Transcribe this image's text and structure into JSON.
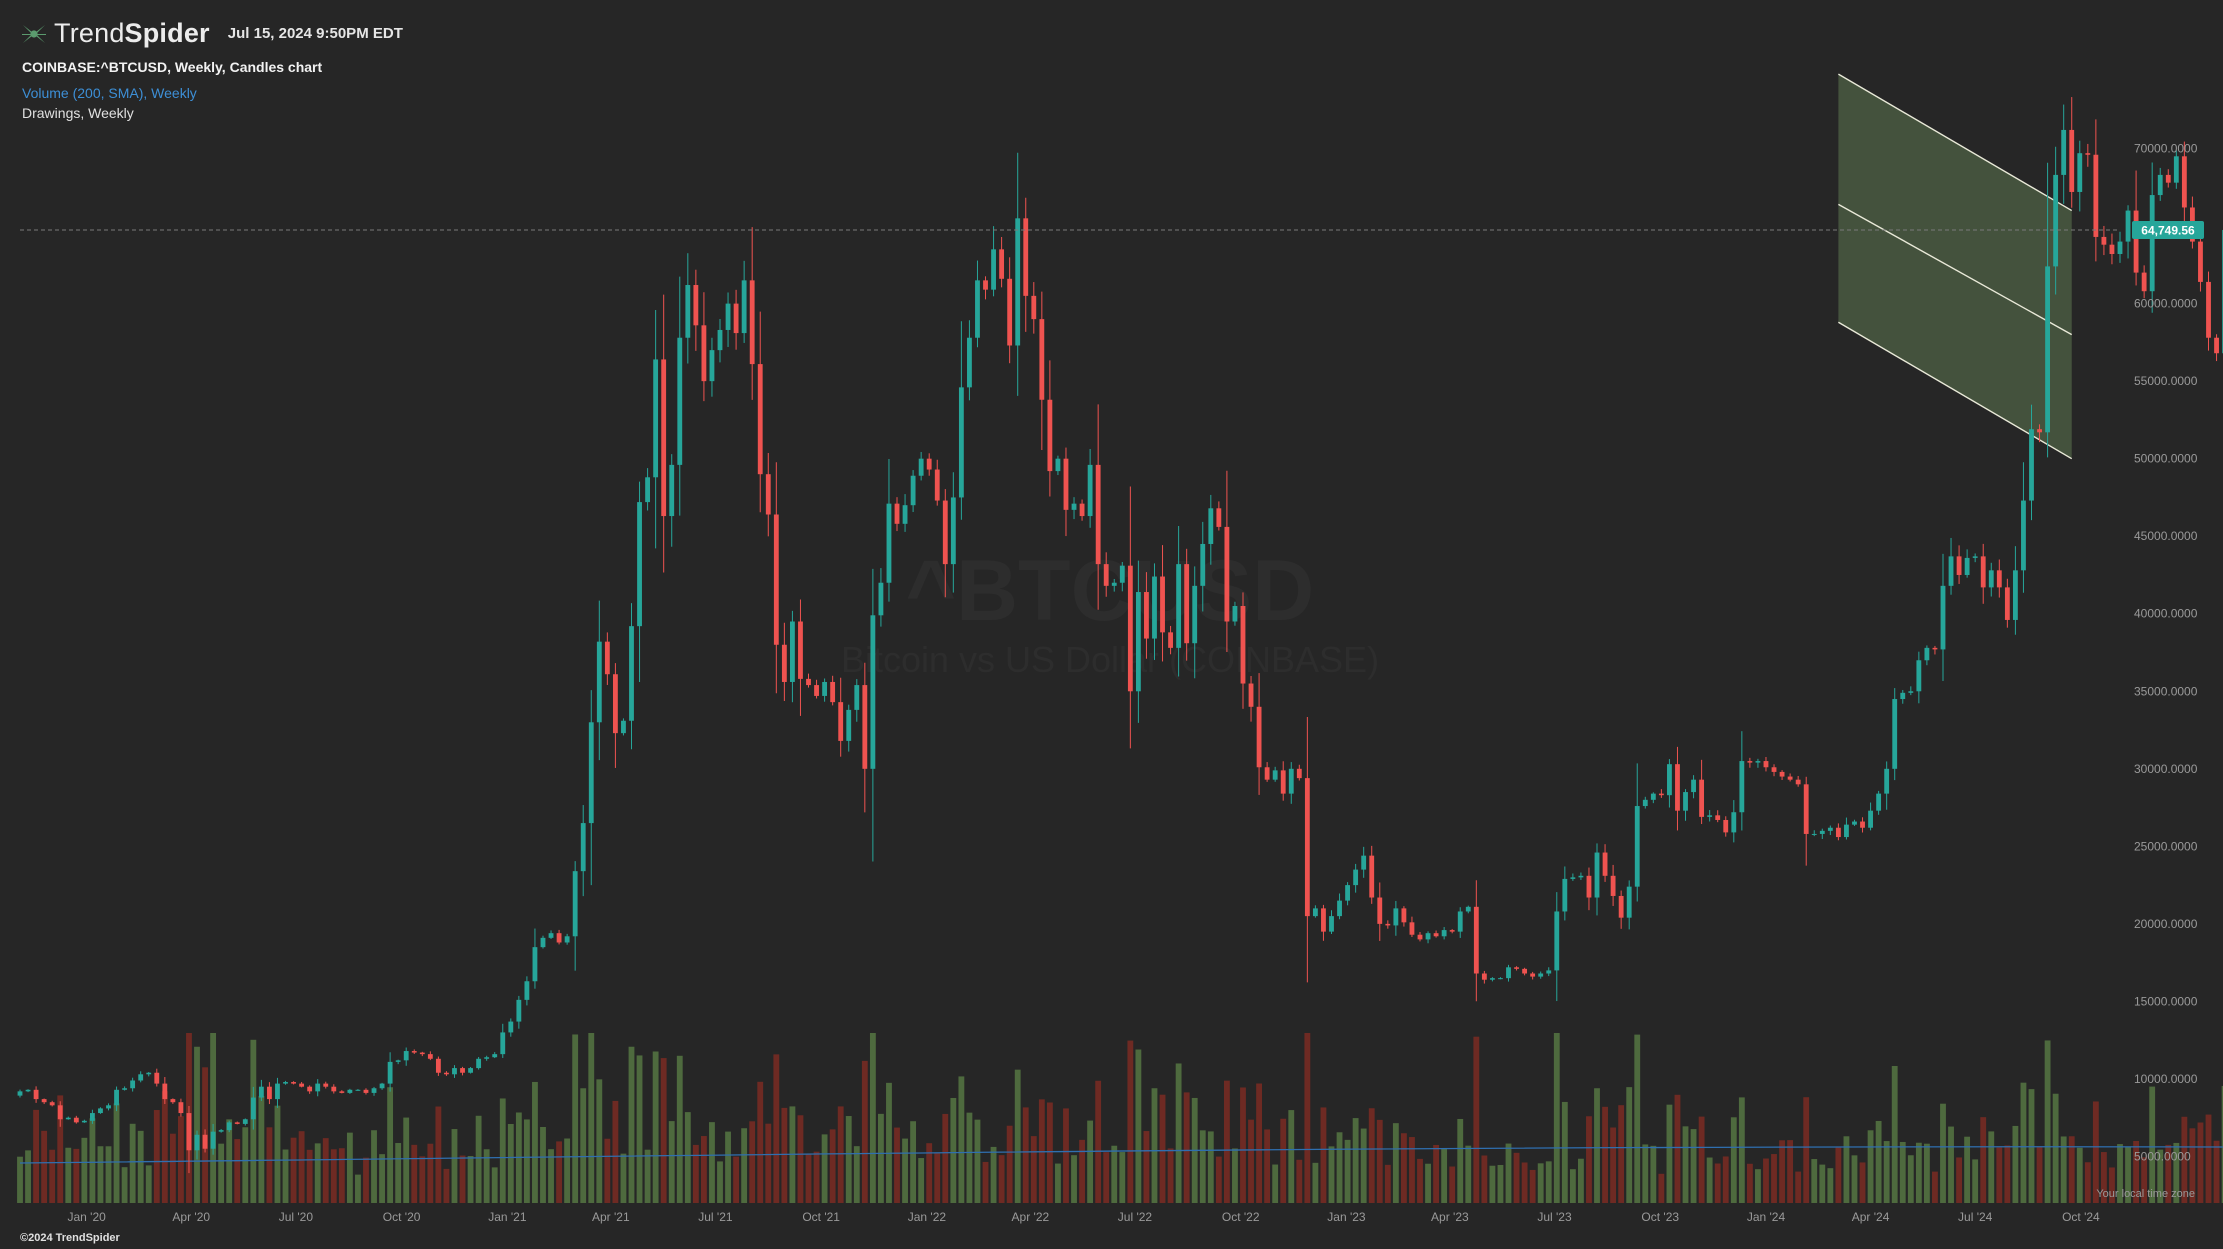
{
  "header": {
    "brand_light": "Trend",
    "brand_bold": "Spider",
    "datetime": "Jul 15, 2024 9:50PM EDT"
  },
  "info": {
    "symbol_line": "COINBASE:^BTCUSD, Weekly, Candles chart",
    "volume_line": "Volume (200, SMA), Weekly",
    "drawings_line": "Drawings, Weekly"
  },
  "watermark": {
    "ticker": "^BTCUSD",
    "name": "Bitcoin vs US Dollar (COINBASE)"
  },
  "footer": {
    "copyright": "©2024 TrendSpider",
    "timezone_label": "Your local time zone"
  },
  "colors": {
    "background": "#262626",
    "up": "#26a69a",
    "down": "#ef5350",
    "volume_up": "#4e6a3e",
    "volume_down": "#6e2a23",
    "volume_sma": "#2f6fb0",
    "channel_fill": "#6a8a5a",
    "price_badge": "#26a69a"
  },
  "chart_data": {
    "type": "candlestick",
    "title": "COINBASE:^BTCUSD, Weekly, Candles chart",
    "y_axis": {
      "ticks": [
        5000,
        10000,
        15000,
        20000,
        25000,
        30000,
        35000,
        40000,
        45000,
        50000,
        55000,
        60000,
        65000,
        70000
      ],
      "tick_labels": [
        "5000.0000",
        "10000.0000",
        "15000.0000",
        "20000.0000",
        "25000.0000",
        "30000.0000",
        "35000.0000",
        "40000.0000",
        "45000.0000",
        "50000.0000",
        "55000.0000",
        "60000.0000",
        "65000.0000",
        "70000.0000"
      ],
      "range": [
        2000,
        77000
      ],
      "position": "right"
    },
    "x_axis": {
      "range": [
        "2019-11-04",
        "2024-11-04"
      ],
      "labels": [
        {
          "label": "Jan '20",
          "date": "2020-01-01"
        },
        {
          "label": "Apr '20",
          "date": "2020-04-01"
        },
        {
          "label": "Jul '20",
          "date": "2020-07-01"
        },
        {
          "label": "Oct '20",
          "date": "2020-10-01"
        },
        {
          "label": "Jan '21",
          "date": "2021-01-01"
        },
        {
          "label": "Apr '21",
          "date": "2021-04-01"
        },
        {
          "label": "Jul '21",
          "date": "2021-07-01"
        },
        {
          "label": "Oct '21",
          "date": "2021-10-01"
        },
        {
          "label": "Jan '22",
          "date": "2022-01-01"
        },
        {
          "label": "Apr '22",
          "date": "2022-04-01"
        },
        {
          "label": "Jul '22",
          "date": "2022-07-01"
        },
        {
          "label": "Oct '22",
          "date": "2022-10-01"
        },
        {
          "label": "Jan '23",
          "date": "2023-01-01"
        },
        {
          "label": "Apr '23",
          "date": "2023-04-01"
        },
        {
          "label": "Jul '23",
          "date": "2023-07-01"
        },
        {
          "label": "Oct '23",
          "date": "2023-10-01"
        },
        {
          "label": "Jan '24",
          "date": "2024-01-01"
        },
        {
          "label": "Apr '24",
          "date": "2024-04-01"
        },
        {
          "label": "Jul '24",
          "date": "2024-07-01"
        },
        {
          "label": "Oct '24",
          "date": "2024-10-01"
        }
      ]
    },
    "last_price": 64749.56,
    "last_price_label": "64,749.56",
    "first_week": "2019-11-04",
    "weekly_closes": [
      9200,
      9300,
      8700,
      8500,
      8300,
      7400,
      7500,
      7200,
      7300,
      7800,
      8100,
      8300,
      9300,
      9400,
      9900,
      10300,
      10400,
      9700,
      8700,
      8500,
      7800,
      5400,
      6400,
      5500,
      6600,
      6700,
      7200,
      7100,
      7400,
      8800,
      9500,
      8700,
      9700,
      9800,
      9700,
      9500,
      9200,
      9700,
      9500,
      9200,
      9100,
      9300,
      9300,
      9100,
      9400,
      9700,
      11100,
      11200,
      11800,
      11700,
      11600,
      11300,
      10400,
      10300,
      10700,
      10400,
      10700,
      11300,
      11400,
      11600,
      13000,
      13700,
      15100,
      16300,
      18500,
      19100,
      19400,
      18800,
      19200,
      23400,
      26500,
      33000,
      38200,
      36100,
      32300,
      33100,
      39200,
      47200,
      48800,
      56400,
      46300,
      49600,
      57800,
      61200,
      58600,
      55000,
      57000,
      58300,
      60000,
      58100,
      61500,
      56100,
      49000,
      46400,
      38000,
      35600,
      39500,
      35800,
      35400,
      34700,
      35600,
      34300,
      31800,
      33800,
      35400,
      30000,
      39900,
      42000,
      47100,
      45800,
      47000,
      48900,
      50000,
      49300,
      47300,
      43200,
      47500,
      54600,
      57800,
      61500,
      60900,
      63500,
      61600,
      57300,
      65500,
      60500,
      59000,
      53800,
      49200,
      50000,
      46700,
      47100,
      46300,
      49600,
      43200,
      41800,
      42000,
      43100,
      35000,
      41400,
      38400,
      42400,
      38800,
      37800,
      43200,
      38100,
      41800,
      44500,
      46800,
      45600,
      39500,
      40500,
      35500,
      34000,
      30100,
      29300,
      29900,
      28400,
      30000,
      29400,
      20500,
      21000,
      19500,
      20500,
      21500,
      22500,
      23500,
      24400,
      21700,
      20000,
      19900,
      21000,
      20100,
      19300,
      19000,
      19400,
      19200,
      19600,
      19500,
      20800,
      21100,
      16800,
      16400,
      16500,
      16500,
      17200,
      17100,
      16800,
      16600,
      16800,
      17000,
      20800,
      22900,
      23000,
      23100,
      21700,
      24600,
      23100,
      21800,
      20400,
      22400,
      27600,
      28000,
      28400,
      28300,
      30300,
      27300,
      28500,
      29300,
      26900,
      27000,
      26700,
      25900,
      27200,
      30500,
      30400,
      30500,
      30100,
      29800,
      29500,
      29300,
      29000,
      25800,
      25800,
      26000,
      26200,
      25600,
      26400,
      26600,
      26200,
      27300,
      28400,
      30000,
      34500,
      34900,
      35000,
      37000,
      37800,
      37700,
      41800,
      43700,
      42500,
      43600,
      43700,
      41700,
      42800,
      41700,
      39600,
      42800,
      47300,
      51900,
      51700,
      62400,
      68300,
      71200,
      67200,
      69700,
      69600,
      64300,
      63800,
      63200,
      64000,
      66000,
      62000,
      60800,
      67000,
      68300,
      67800,
      69500,
      66200,
      64000,
      61400,
      57800,
      56800,
      64749.56
    ],
    "volume": {
      "sma_period": 200,
      "note": "Volume (200, SMA), Weekly",
      "sma_level_start": 5000,
      "sma_level_end": 7200
    },
    "channel": {
      "type": "descending parallel channel",
      "start_date": "2024-03-04",
      "end_date": "2024-09-23",
      "upper": [
        74800,
        66000
      ],
      "middle": [
        66400,
        58000
      ],
      "lower": [
        58800,
        50000
      ]
    }
  }
}
